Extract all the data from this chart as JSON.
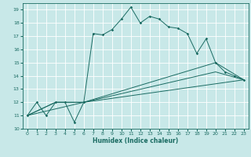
{
  "xlabel": "Humidex (Indice chaleur)",
  "ylabel": "",
  "xlim": [
    -0.5,
    23.5
  ],
  "ylim": [
    10,
    19.5
  ],
  "xticks": [
    0,
    1,
    2,
    3,
    4,
    5,
    6,
    7,
    8,
    9,
    10,
    11,
    12,
    13,
    14,
    15,
    16,
    17,
    18,
    19,
    20,
    21,
    22,
    23
  ],
  "yticks": [
    10,
    11,
    12,
    13,
    14,
    15,
    16,
    17,
    18,
    19
  ],
  "bg_color": "#c8e8e8",
  "line_color": "#1a6b62",
  "grid_color": "#ffffff",
  "line1_x": [
    0,
    1,
    2,
    3,
    4,
    5,
    6,
    7,
    8,
    9,
    10,
    11,
    12,
    13,
    14,
    15,
    16,
    17,
    18,
    19,
    20,
    21,
    22,
    23
  ],
  "line1_y": [
    11,
    12,
    11,
    12,
    12,
    10.5,
    12,
    17.2,
    17.1,
    17.5,
    18.3,
    19.2,
    18.0,
    18.5,
    18.3,
    17.7,
    17.6,
    17.2,
    15.7,
    16.8,
    15.0,
    14.3,
    14.0,
    13.7
  ],
  "line2_x": [
    0,
    3,
    6,
    20,
    23
  ],
  "line2_y": [
    11,
    12,
    12,
    15.0,
    13.7
  ],
  "line3_x": [
    0,
    3,
    6,
    20,
    23
  ],
  "line3_y": [
    11,
    12,
    12,
    14.3,
    13.7
  ],
  "line4_x": [
    0,
    6,
    23
  ],
  "line4_y": [
    11,
    12,
    13.7
  ],
  "xlabel_fontsize": 5.5,
  "tick_fontsize": 4.5,
  "lw": 0.7,
  "ms": 1.8
}
